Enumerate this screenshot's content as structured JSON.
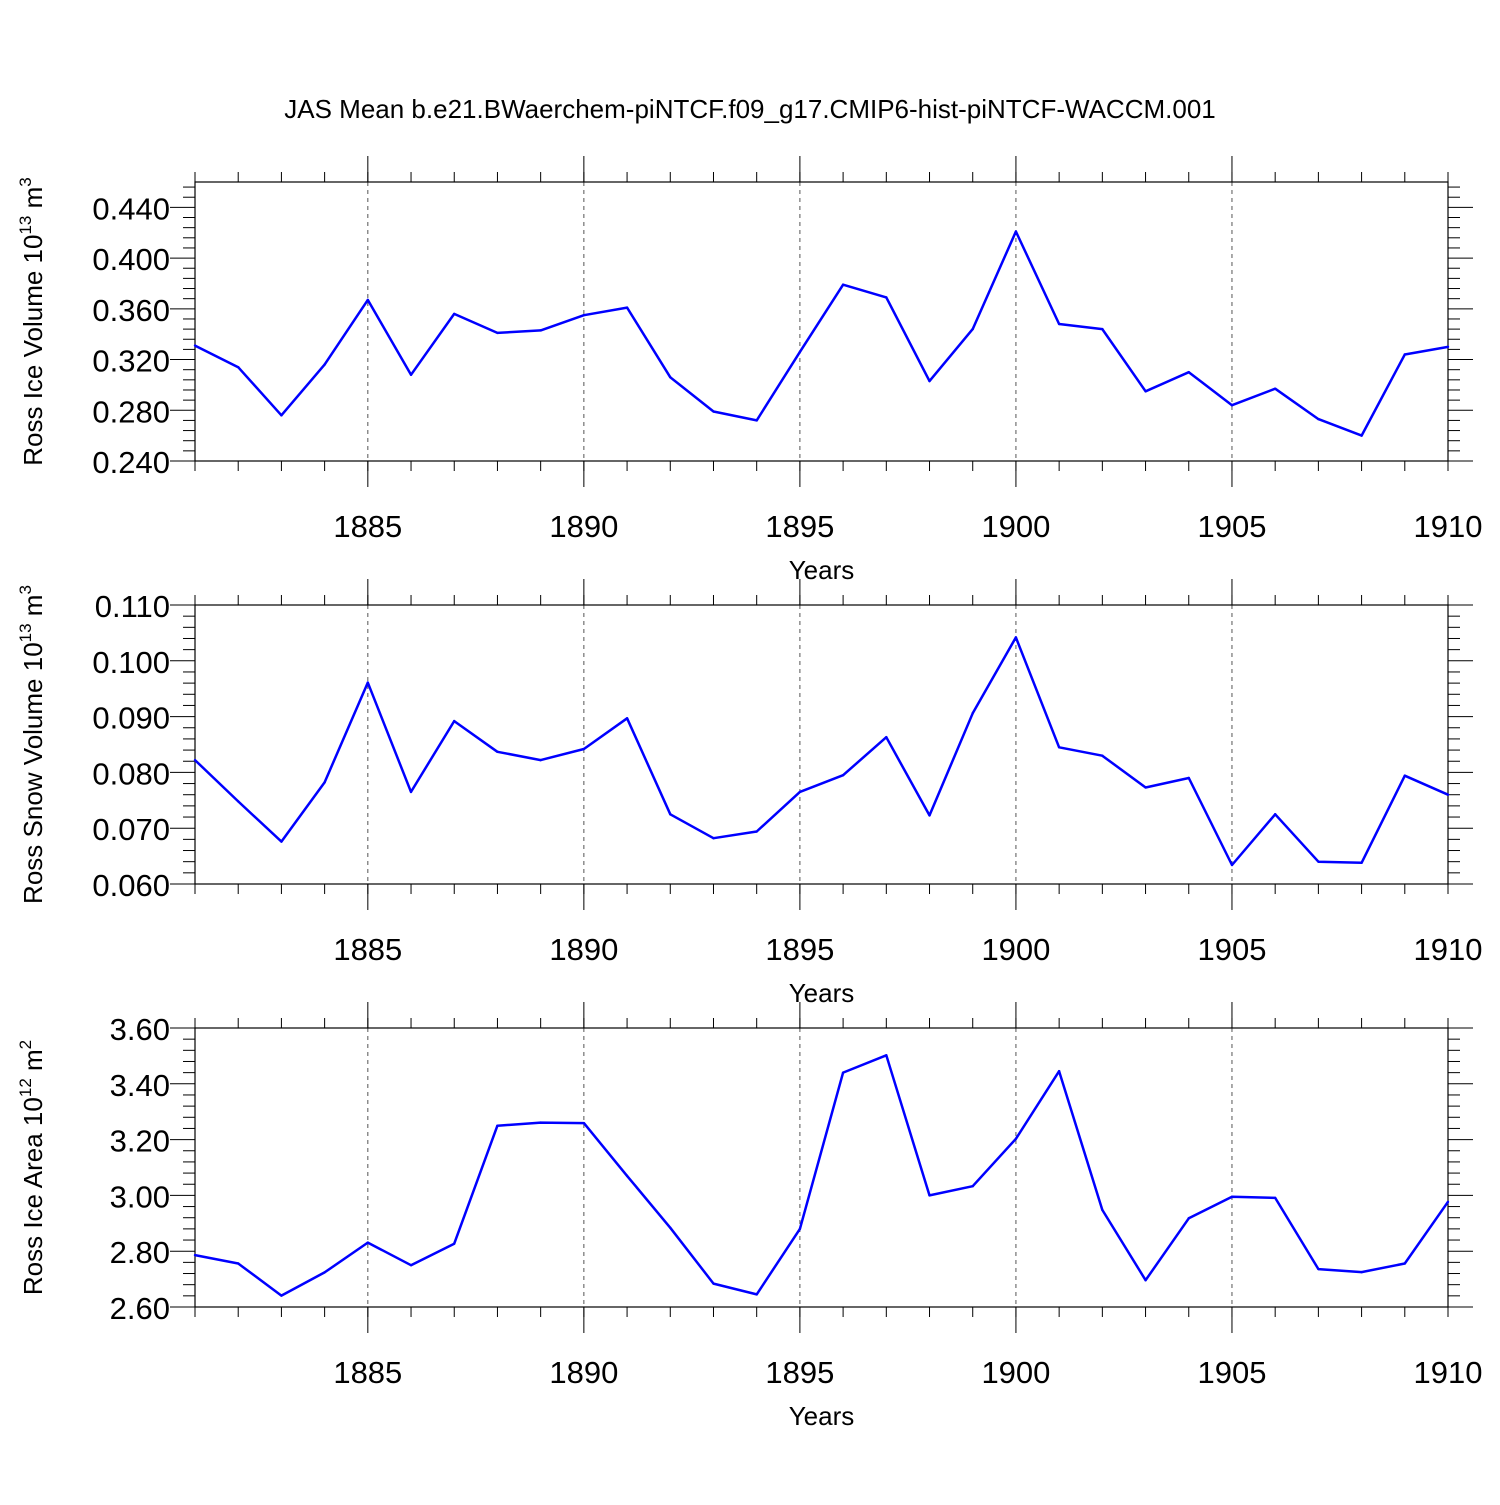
{
  "figure_title": "JAS Mean b.e21.BWaerchem-piNTCF.f09_g17.CMIP6-hist-piNTCF-WACCM.001",
  "colors": {
    "line": "#0000ff",
    "axis": "#000000",
    "grid": "#555555"
  },
  "chart_data": [
    {
      "type": "line",
      "name": "ross-ice-volume",
      "ylabel_main": "Ross Ice Volume 10",
      "ylabel_exp": "13",
      "ylabel_unit": " m",
      "ylabel_unit_exp": "3",
      "xlabel": "Years",
      "xlim": [
        1881,
        1910
      ],
      "ylim": [
        0.24,
        0.46
      ],
      "ytick_values": [
        0.24,
        0.28,
        0.32,
        0.36,
        0.4,
        0.44
      ],
      "ytick_labels": [
        "0.240",
        "0.280",
        "0.320",
        "0.360",
        "0.400",
        "0.440"
      ],
      "xtick_values": [
        1885,
        1890,
        1895,
        1900,
        1905,
        1910
      ],
      "xtick_labels": [
        "1885",
        "1890",
        "1895",
        "1900",
        "1905",
        "1910"
      ],
      "grid_x": [
        1885,
        1890,
        1895,
        1900,
        1905
      ],
      "x": [
        1881,
        1882,
        1883,
        1884,
        1885,
        1886,
        1887,
        1888,
        1889,
        1890,
        1891,
        1892,
        1893,
        1894,
        1895,
        1896,
        1897,
        1898,
        1899,
        1900,
        1901,
        1902,
        1903,
        1904,
        1905,
        1906,
        1907,
        1908,
        1909,
        1910
      ],
      "values": [
        0.331,
        0.314,
        0.276,
        0.316,
        0.367,
        0.308,
        0.356,
        0.341,
        0.343,
        0.355,
        0.361,
        0.306,
        0.279,
        0.272,
        0.326,
        0.379,
        0.369,
        0.303,
        0.344,
        0.421,
        0.348,
        0.344,
        0.295,
        0.31,
        0.284,
        0.297,
        0.273,
        0.26,
        0.324,
        0.33
      ]
    },
    {
      "type": "line",
      "name": "ross-snow-volume",
      "ylabel_main": "Ross Snow Volume 10",
      "ylabel_exp": "13",
      "ylabel_unit": " m",
      "ylabel_unit_exp": "3",
      "xlabel": "Years",
      "xlim": [
        1881,
        1910
      ],
      "ylim": [
        0.06,
        0.11
      ],
      "ytick_values": [
        0.06,
        0.07,
        0.08,
        0.09,
        0.1,
        0.11
      ],
      "ytick_labels": [
        "0.060",
        "0.070",
        "0.080",
        "0.090",
        "0.100",
        "0.110"
      ],
      "xtick_values": [
        1885,
        1890,
        1895,
        1900,
        1905,
        1910
      ],
      "xtick_labels": [
        "1885",
        "1890",
        "1895",
        "1900",
        "1905",
        "1910"
      ],
      "grid_x": [
        1885,
        1890,
        1895,
        1900,
        1905
      ],
      "x": [
        1881,
        1882,
        1883,
        1884,
        1885,
        1886,
        1887,
        1888,
        1889,
        1890,
        1891,
        1892,
        1893,
        1894,
        1895,
        1896,
        1897,
        1898,
        1899,
        1900,
        1901,
        1902,
        1903,
        1904,
        1905,
        1906,
        1907,
        1908,
        1909,
        1910
      ],
      "values": [
        0.0822,
        0.0748,
        0.0676,
        0.0782,
        0.0961,
        0.0765,
        0.0892,
        0.0837,
        0.0822,
        0.0842,
        0.0897,
        0.0725,
        0.0682,
        0.0694,
        0.0765,
        0.0795,
        0.0863,
        0.0723,
        0.0906,
        0.1042,
        0.0845,
        0.083,
        0.0773,
        0.079,
        0.0634,
        0.0725,
        0.064,
        0.0638,
        0.0794,
        0.076
      ]
    },
    {
      "type": "line",
      "name": "ross-ice-area",
      "ylabel_main": "Ross Ice Area 10",
      "ylabel_exp": "12",
      "ylabel_unit": " m",
      "ylabel_unit_exp": "2",
      "xlabel": "Years",
      "xlim": [
        1881,
        1910
      ],
      "ylim": [
        2.6,
        3.6
      ],
      "ytick_values": [
        2.6,
        2.8,
        3.0,
        3.2,
        3.4,
        3.6
      ],
      "ytick_labels": [
        "2.60",
        "2.80",
        "3.00",
        "3.20",
        "3.40",
        "3.60"
      ],
      "xtick_values": [
        1885,
        1890,
        1895,
        1900,
        1905,
        1910
      ],
      "xtick_labels": [
        "1885",
        "1890",
        "1895",
        "1900",
        "1905",
        "1910"
      ],
      "grid_x": [
        1885,
        1890,
        1895,
        1900,
        1905
      ],
      "x": [
        1881,
        1882,
        1883,
        1884,
        1885,
        1886,
        1887,
        1888,
        1889,
        1890,
        1891,
        1892,
        1893,
        1894,
        1895,
        1896,
        1897,
        1898,
        1899,
        1900,
        1901,
        1902,
        1903,
        1904,
        1905,
        1906,
        1907,
        1908,
        1909,
        1910
      ],
      "values": [
        2.786,
        2.756,
        2.641,
        2.724,
        2.831,
        2.75,
        2.827,
        3.25,
        3.261,
        3.259,
        3.07,
        2.884,
        2.684,
        2.645,
        2.88,
        3.44,
        3.502,
        3.0,
        3.033,
        3.203,
        3.445,
        2.948,
        2.696,
        2.918,
        2.995,
        2.991,
        2.736,
        2.725,
        2.756,
        2.977
      ]
    }
  ]
}
